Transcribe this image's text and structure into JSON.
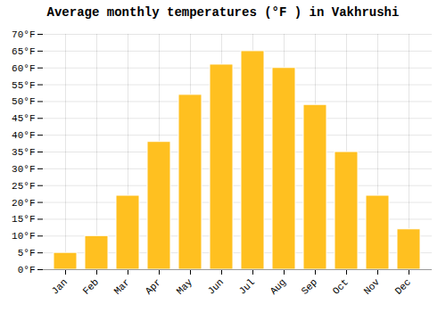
{
  "chart_data": {
    "type": "bar",
    "title": "Average monthly temperatures (°F ) in Vakhrushi",
    "categories": [
      "Jan",
      "Feb",
      "Mar",
      "Apr",
      "May",
      "Jun",
      "Jul",
      "Aug",
      "Sep",
      "Oct",
      "Nov",
      "Dec"
    ],
    "values": [
      5,
      10,
      22,
      38,
      52,
      61,
      65,
      60,
      49,
      35,
      22,
      12
    ],
    "color": "#FFC020",
    "ylim": [
      0,
      70
    ],
    "yticks": [
      {
        "value": 0,
        "label": "0°F"
      },
      {
        "value": 5,
        "label": "5°F"
      },
      {
        "value": 10,
        "label": "10°F"
      },
      {
        "value": 15,
        "label": "15°F"
      },
      {
        "value": 20,
        "label": "20°F"
      },
      {
        "value": 25,
        "label": "25°F"
      },
      {
        "value": 30,
        "label": "30°F"
      },
      {
        "value": 35,
        "label": "35°F"
      },
      {
        "value": 40,
        "label": "40°F"
      },
      {
        "value": 45,
        "label": "45°F"
      },
      {
        "value": 50,
        "label": "50°F"
      },
      {
        "value": 55,
        "label": "55°F"
      },
      {
        "value": 60,
        "label": "60°F"
      },
      {
        "value": 65,
        "label": "65°F"
      },
      {
        "value": 70,
        "label": "70°F"
      }
    ],
    "grid": true
  }
}
